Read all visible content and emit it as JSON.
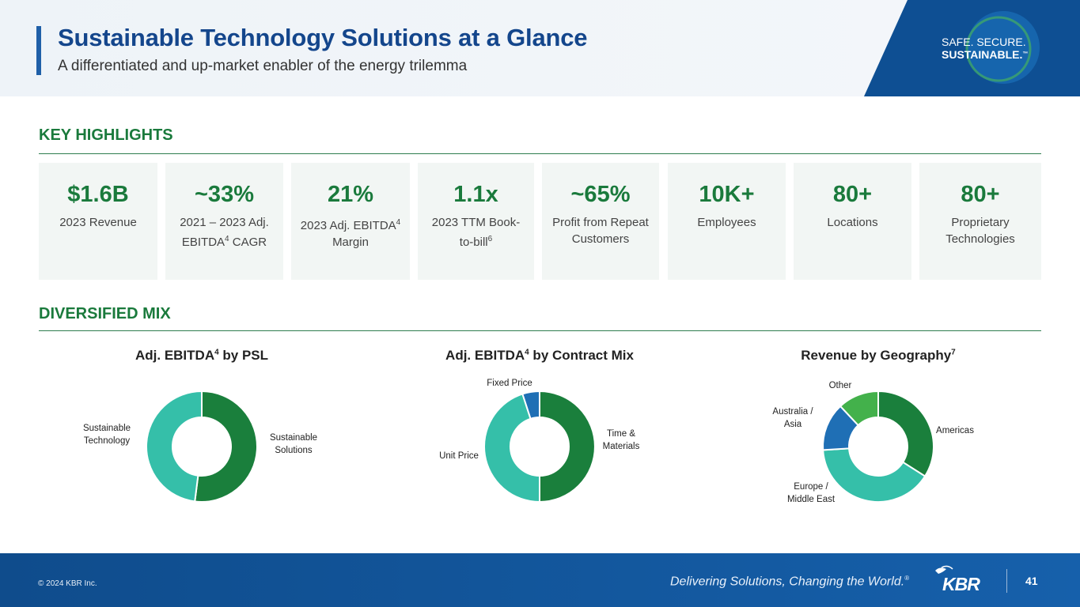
{
  "header": {
    "title": "Sustainable Technology Solutions at a Glance",
    "subtitle": "A differentiated and up-market enabler of the energy trilemma",
    "brand_line1": "SAFE. SECURE.",
    "brand_line2": "SUSTAINABLE.",
    "brand_tm": "™"
  },
  "highlights": {
    "title": "KEY HIGHLIGHTS",
    "items": [
      {
        "value": "$1.6B",
        "label": "2023 Revenue"
      },
      {
        "value": "~33%",
        "label": "2021 – 2023 Adj. EBITDA",
        "sup": "4",
        "label_after": " CAGR"
      },
      {
        "value": "21%",
        "label": "2023 Adj. EBITDA",
        "sup": "4",
        "label_after": " Margin"
      },
      {
        "value": "1.1x",
        "label": "2023 TTM Book-to-bill",
        "sup": "6",
        "label_after": ""
      },
      {
        "value": "~65%",
        "label": "Profit from Repeat Customers"
      },
      {
        "value": "10K+",
        "label": "Employees"
      },
      {
        "value": "80+",
        "label": "Locations"
      },
      {
        "value": "80+",
        "label": "Proprietary Technologies"
      }
    ]
  },
  "mix": {
    "title": "DIVERSIFIED MIX"
  },
  "colors": {
    "dark_green": "#1a7f3c",
    "teal": "#35bfa9",
    "blue": "#1f6fb5",
    "light_green": "#43b14b"
  },
  "chart_data": [
    {
      "type": "donut",
      "title": "Adj. EBITDA",
      "title_sup": "4",
      "title_after": " by PSL",
      "categories": [
        "Sustainable Solutions",
        "Sustainable Technology"
      ],
      "values": [
        52,
        48
      ],
      "label_lines": [
        [
          "Sustainable",
          "Solutions"
        ],
        [
          "Sustainable",
          "Technology"
        ]
      ]
    },
    {
      "type": "donut",
      "title": "Adj. EBITDA",
      "title_sup": "4",
      "title_after": " by Contract Mix",
      "categories": [
        "Time & Materials",
        "Unit Price",
        "Fixed Price"
      ],
      "values": [
        50,
        45,
        5
      ],
      "label_lines": [
        [
          "Time &",
          "Materials"
        ],
        [
          "Unit Price"
        ],
        [
          "Fixed Price"
        ]
      ]
    },
    {
      "type": "donut",
      "title": "Revenue by Geography",
      "title_sup": "7",
      "title_after": "",
      "categories": [
        "Americas",
        "Europe / Middle East",
        "Australia / Asia",
        "Other"
      ],
      "values": [
        34,
        40,
        14,
        12
      ],
      "label_lines": [
        [
          "Americas"
        ],
        [
          "Europe /",
          "Middle East"
        ],
        [
          "Australia /",
          "Asia"
        ],
        [
          "Other"
        ]
      ]
    }
  ],
  "footer": {
    "copyright": "© 2024 KBR Inc.",
    "tagline": "Delivering Solutions, Changing the World.",
    "tagline_mark": "®",
    "logo": "KBR",
    "page": "41"
  }
}
